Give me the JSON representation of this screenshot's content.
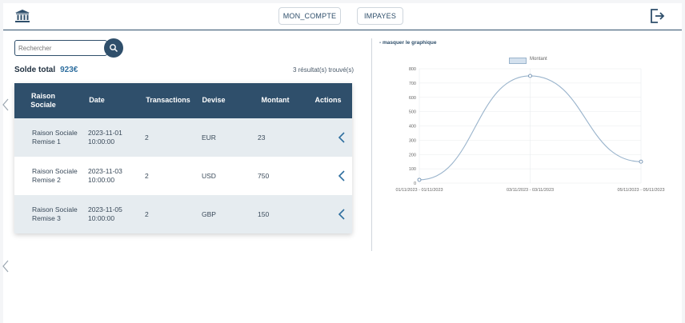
{
  "header": {
    "nav": [
      {
        "label": "MON_COMPTE"
      },
      {
        "label": "IMPAYES"
      }
    ]
  },
  "search": {
    "placeholder": "Rechercher"
  },
  "summary": {
    "solde_label": "Solde total",
    "solde_value": "923€",
    "results_text": "3 résultat(s) trouvé(s)"
  },
  "table": {
    "columns": [
      "Raison Sociale",
      "Date",
      "Transactions",
      "Devise",
      "Montant",
      "Actions"
    ],
    "rows": [
      {
        "raison": "Raison Sociale Remise 1",
        "date": "2023-11-01 10:00:00",
        "transactions": "2",
        "devise": "EUR",
        "montant": "23"
      },
      {
        "raison": "Raison Sociale Remise 2",
        "date": "2023-11-03 10:00:00",
        "transactions": "2",
        "devise": "USD",
        "montant": "750"
      },
      {
        "raison": "Raison Sociale Remise 3",
        "date": "2023-11-05 10:00:00",
        "transactions": "2",
        "devise": "GBP",
        "montant": "150"
      }
    ]
  },
  "chart_toggle": "- masquer le graphique",
  "chart_data": {
    "type": "line",
    "categories": [
      "01/11/2023 - 01/11/2023",
      "03/11/2023 - 03/11/2023",
      "05/11/2023 - 05/11/2023"
    ],
    "series": [
      {
        "name": "Montant",
        "values": [
          23,
          750,
          150
        ]
      }
    ],
    "ylim": [
      0,
      800
    ],
    "yticks": [
      "0",
      "100",
      "200",
      "300",
      "400",
      "500",
      "600",
      "700",
      "800"
    ],
    "grid": true,
    "legend": "top-center",
    "line_color": "#9ab4cc",
    "fill_color": "#d4e1ee"
  },
  "colors": {
    "primary": "#2f4f6b",
    "row_alt": "#e6ecf0"
  }
}
